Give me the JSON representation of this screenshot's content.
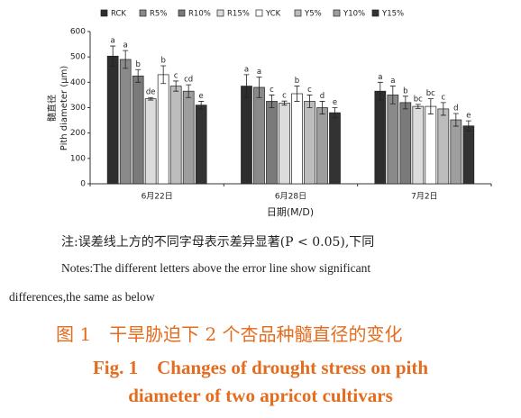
{
  "chart_data": {
    "type": "bar",
    "ylabel_cn": "髓直径",
    "ylabel": "Pith diameter (μm)",
    "xlabel": "日期(M/D)",
    "categories": [
      "6月22日",
      "6月28日",
      "7月2日"
    ],
    "ylim": [
      0,
      600
    ],
    "yticks": [
      0,
      100,
      200,
      300,
      400,
      500,
      600
    ],
    "series": [
      {
        "name": "RCK",
        "color": "#2e2e2e",
        "values": [
          503,
          385,
          365
        ],
        "errors": [
          40,
          45,
          35
        ],
        "letters": [
          "a",
          "a",
          "a"
        ]
      },
      {
        "name": "R5%",
        "color": "#8a8a8a",
        "values": [
          490,
          380,
          350
        ],
        "errors": [
          35,
          40,
          35
        ],
        "letters": [
          "a",
          "a",
          "a"
        ]
      },
      {
        "name": "R10%",
        "color": "#7a7a7a",
        "values": [
          425,
          325,
          320
        ],
        "errors": [
          25,
          25,
          25
        ],
        "letters": [
          "b",
          "c",
          "b"
        ]
      },
      {
        "name": "R15%",
        "color": "#dcdcdc",
        "values": [
          335,
          318,
          305
        ],
        "errors": [
          5,
          8,
          8
        ],
        "letters": [
          "de",
          "c",
          "bc"
        ]
      },
      {
        "name": "YCK",
        "color": "#ffffff",
        "values": [
          430,
          355,
          305
        ],
        "errors": [
          35,
          30,
          30
        ],
        "letters": [
          "b",
          "b",
          "bc"
        ]
      },
      {
        "name": "Y5%",
        "color": "#bdbdbd",
        "values": [
          385,
          325,
          295
        ],
        "errors": [
          20,
          25,
          25
        ],
        "letters": [
          "c",
          "c",
          "c"
        ]
      },
      {
        "name": "Y10%",
        "color": "#9e9e9e",
        "values": [
          365,
          300,
          252
        ],
        "errors": [
          25,
          25,
          25
        ],
        "letters": [
          "cd",
          "d",
          "d"
        ]
      },
      {
        "name": "Y15%",
        "color": "#333333",
        "values": [
          310,
          280,
          228
        ],
        "errors": [
          15,
          20,
          20
        ],
        "letters": [
          "e",
          "e",
          "e"
        ]
      }
    ]
  },
  "caption": {
    "note_cn": "注:误差线上方的不同字母表示差异显著(P < 0.05),下同",
    "note_en": [
      "Notes:The different letters above the error line show significant",
      "differences,the same as below"
    ],
    "figure_cn": "图 1　干旱胁迫下 2 个杏品种髓直径的变化",
    "figure_en": [
      "Fig. 1　Changes of drought stress on pith",
      "diameter of two apricot cultivars"
    ]
  }
}
